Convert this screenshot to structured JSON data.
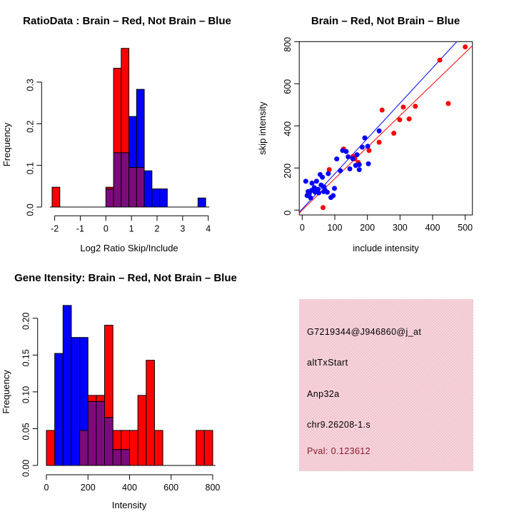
{
  "colors": {
    "red": "#FF0000",
    "blue": "#0000FF",
    "purple": "#7D0A7D",
    "dark_red": "#8B1A2B",
    "pink_box": "#F1C5D0",
    "axis": "#000000"
  },
  "chart_data": [
    {
      "id": "ratio_histogram",
      "type": "bar",
      "title": "RatioData : Brain – Red, Not Brain – Blue",
      "xlabel": "Log2 Ratio Skip/Include",
      "ylabel": "Frequency",
      "legend_note": "Brain = red bars, Not Brain = blue bars, overlap shown purple",
      "bin_width": 0.3,
      "xticks": [
        -2,
        -1,
        0,
        1,
        2,
        3,
        4
      ],
      "ytick_values": [
        0,
        0.1,
        0.2,
        0.3
      ],
      "ytick_labels": [
        "0.0",
        "0.1",
        "0.2",
        "0.3"
      ],
      "xlim": [
        -2.25,
        4.05
      ],
      "ylim": [
        0,
        0.386
      ],
      "baseline_extent": [
        -2.19,
        4.04
      ],
      "bars": [
        {
          "x0": -2.1,
          "red": 0.0476,
          "blue": 0
        },
        {
          "x0": 0.0,
          "red": 0.0476,
          "blue": 0.0435
        },
        {
          "x0": 0.3,
          "red": 0.3333,
          "blue": 0.1304
        },
        {
          "x0": 0.6,
          "red": 0.381,
          "blue": 0.1304
        },
        {
          "x0": 0.9,
          "red": 0.0952,
          "blue": 0.2174
        },
        {
          "x0": 1.2,
          "red": 0.0952,
          "blue": 0.2826
        },
        {
          "x0": 1.5,
          "red": 0,
          "blue": 0.087
        },
        {
          "x0": 1.8,
          "red": 0,
          "blue": 0.0435
        },
        {
          "x0": 2.1,
          "red": 0,
          "blue": 0.0435
        },
        {
          "x0": 3.6,
          "red": 0,
          "blue": 0.0217
        }
      ]
    },
    {
      "id": "intensity_scatter",
      "type": "scatter",
      "title": "Brain – Red, Not Brain – Blue",
      "xlabel": "include intensity",
      "ylabel": "skip intensity",
      "xticks": [
        0,
        100,
        200,
        300,
        400,
        500
      ],
      "yticks": [
        0,
        200,
        400,
        600,
        800
      ],
      "xlim": [
        -9,
        522
      ],
      "ylim": [
        -23,
        800
      ],
      "lines": [
        {
          "name": "not-brain-fit",
          "color": "blue",
          "slope": 1.676,
          "intercept": 5
        },
        {
          "name": "brain-fit",
          "color": "red",
          "slope": 1.495,
          "intercept": 0
        }
      ],
      "red_points": [
        [
          500,
          775
        ],
        [
          422,
          712
        ],
        [
          448,
          506
        ],
        [
          347,
          493
        ],
        [
          310,
          489
        ],
        [
          245,
          475
        ],
        [
          328,
          433
        ],
        [
          299,
          429
        ],
        [
          281,
          365
        ],
        [
          236,
          322
        ],
        [
          205,
          283
        ],
        [
          161,
          243
        ],
        [
          127,
          290
        ],
        [
          156,
          255
        ],
        [
          172,
          226
        ],
        [
          83,
          192
        ],
        [
          64,
          12
        ]
      ],
      "blue_points": [
        [
          236,
          376
        ],
        [
          192,
          343
        ],
        [
          201,
          303
        ],
        [
          184,
          299
        ],
        [
          168,
          263
        ],
        [
          155,
          244
        ],
        [
          141,
          253
        ],
        [
          135,
          278
        ],
        [
          124,
          283
        ],
        [
          106,
          243
        ],
        [
          203,
          220
        ],
        [
          175,
          216
        ],
        [
          164,
          212
        ],
        [
          175,
          192
        ],
        [
          146,
          196
        ],
        [
          117,
          187
        ],
        [
          80,
          173
        ],
        [
          55,
          169
        ],
        [
          62,
          156
        ],
        [
          44,
          137
        ],
        [
          11,
          137
        ],
        [
          30,
          128
        ],
        [
          58,
          119
        ],
        [
          67,
          110
        ],
        [
          37,
          107
        ],
        [
          48,
          99
        ],
        [
          29,
          94
        ],
        [
          18,
          88
        ],
        [
          40,
          85
        ],
        [
          51,
          82
        ],
        [
          66,
          88
        ],
        [
          77,
          85
        ],
        [
          99,
          103
        ],
        [
          95,
          69
        ],
        [
          26,
          58
        ],
        [
          15,
          69
        ],
        [
          22,
          78
        ],
        [
          35,
          92
        ],
        [
          70,
          95
        ],
        [
          88,
          60
        ]
      ]
    },
    {
      "id": "gene_intensity_histogram",
      "type": "bar",
      "title": "Gene Itensity: Brain – Red, Not Brain – Blue",
      "xlabel": "Intensity",
      "ylabel": "Frequency",
      "legend_note": "Brain = red bars, Not Brain = blue bars, overlap shown purple",
      "bin_width": 40,
      "xticks": [
        0,
        200,
        400,
        600,
        800
      ],
      "ytick_values": [
        0,
        0.05,
        0.1,
        0.15,
        0.2
      ],
      "ytick_labels": [
        "0.00",
        "0.05",
        "0.10",
        "0.15",
        "0.20"
      ],
      "xlim": [
        0,
        820
      ],
      "ylim": [
        0,
        0.225
      ],
      "baseline_extent": [
        0,
        813
      ],
      "bars": [
        {
          "x0": 0,
          "red": 0.0476,
          "blue": 0
        },
        {
          "x0": 40,
          "red": 0,
          "blue": 0.1522
        },
        {
          "x0": 80,
          "red": 0,
          "blue": 0.2174
        },
        {
          "x0": 120,
          "red": 0,
          "blue": 0.1739
        },
        {
          "x0": 160,
          "red": 0.0476,
          "blue": 0.1739
        },
        {
          "x0": 200,
          "red": 0.0952,
          "blue": 0.087
        },
        {
          "x0": 240,
          "red": 0.0952,
          "blue": 0.087
        },
        {
          "x0": 280,
          "red": 0.1905,
          "blue": 0.0652
        },
        {
          "x0": 320,
          "red": 0.0476,
          "blue": 0.0217
        },
        {
          "x0": 360,
          "red": 0.0476,
          "blue": 0.0217
        },
        {
          "x0": 400,
          "red": 0.0476,
          "blue": 0
        },
        {
          "x0": 440,
          "red": 0.0952,
          "blue": 0
        },
        {
          "x0": 480,
          "red": 0.1429,
          "blue": 0
        },
        {
          "x0": 520,
          "red": 0.0476,
          "blue": 0
        },
        {
          "x0": 720,
          "red": 0.0476,
          "blue": 0
        },
        {
          "x0": 760,
          "red": 0.0476,
          "blue": 0
        }
      ]
    }
  ],
  "info_box": {
    "probe_id": "G7219344@J946860@j_at",
    "event_type": "altTxStart",
    "gene": "Anp32a",
    "location": "chr9.26208-1.s",
    "pval": "Pval: 0.123612"
  }
}
